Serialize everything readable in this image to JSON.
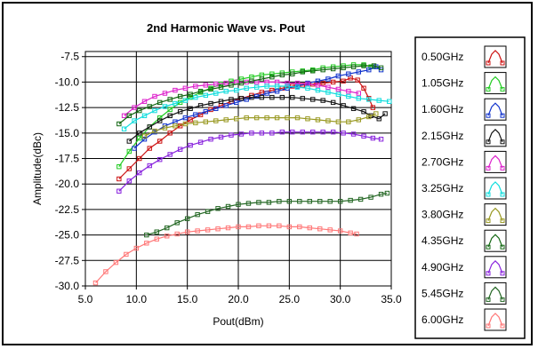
{
  "chart_data": {
    "type": "line",
    "title": "2nd Harmonic Wave vs. Pout",
    "xlabel": "Pout(dBm)",
    "ylabel": "Amplitude(dBc)",
    "xlim": [
      5.0,
      35.0
    ],
    "ylim": [
      -30.0,
      -7.0
    ],
    "xticks": [
      5.0,
      10.0,
      15.0,
      20.0,
      25.0,
      30.0,
      35.0
    ],
    "xtick_labels": [
      "5.0",
      "10.0",
      "15.0",
      "20.0",
      "25.0",
      "30.0",
      "35.0"
    ],
    "yticks": [
      -7.5,
      -10.0,
      -12.5,
      -15.0,
      -17.5,
      -20.0,
      -22.5,
      -25.0,
      -27.5,
      -30.0
    ],
    "ytick_labels": [
      "-7.5",
      "-10.0",
      "-12.5",
      "-15.0",
      "-17.5",
      "-20.0",
      "-22.5",
      "-25.0",
      "-27.5",
      "-30.0"
    ],
    "grid": true,
    "legend_position": "right",
    "series": [
      {
        "name": "0.50GHz",
        "color": "#cc1111",
        "marker": "square",
        "points": [
          [
            8.3,
            -19.5
          ],
          [
            9.3,
            -18.5
          ],
          [
            10.3,
            -17.5
          ],
          [
            11.3,
            -16.5
          ],
          [
            12.3,
            -15.8
          ],
          [
            13.3,
            -15.0
          ],
          [
            14.3,
            -14.3
          ],
          [
            15.3,
            -13.7
          ],
          [
            16.3,
            -13.2
          ],
          [
            17.3,
            -12.7
          ],
          [
            18.3,
            -12.3
          ],
          [
            19.3,
            -11.9
          ],
          [
            20.3,
            -11.6
          ],
          [
            21.3,
            -11.3
          ],
          [
            22.3,
            -11.0
          ],
          [
            23.3,
            -10.8
          ],
          [
            24.3,
            -10.6
          ],
          [
            25.3,
            -10.4
          ],
          [
            26.3,
            -10.3
          ],
          [
            27.3,
            -10.2
          ],
          [
            28.3,
            -10.1
          ],
          [
            29.3,
            -10.0
          ],
          [
            30.3,
            -9.9
          ],
          [
            31.0,
            -9.6
          ],
          [
            31.7,
            -9.8
          ],
          [
            32.3,
            -10.6
          ],
          [
            32.8,
            -11.6
          ],
          [
            33.2,
            -12.5
          ]
        ]
      },
      {
        "name": "1.05GHz",
        "color": "#22cc22",
        "marker": "square",
        "points": [
          [
            8.3,
            -18.3
          ],
          [
            9.3,
            -16.8
          ],
          [
            10.3,
            -15.5
          ],
          [
            11.3,
            -14.4
          ],
          [
            12.3,
            -13.5
          ],
          [
            13.3,
            -12.7
          ],
          [
            14.3,
            -12.0
          ],
          [
            15.3,
            -11.5
          ],
          [
            16.3,
            -11.0
          ],
          [
            17.3,
            -10.6
          ],
          [
            18.3,
            -10.2
          ],
          [
            19.3,
            -9.9
          ],
          [
            20.3,
            -9.7
          ],
          [
            21.3,
            -9.5
          ],
          [
            22.3,
            -9.3
          ],
          [
            23.3,
            -9.2
          ],
          [
            24.3,
            -9.1
          ],
          [
            25.3,
            -9.0
          ],
          [
            26.3,
            -8.9
          ],
          [
            27.3,
            -8.8
          ],
          [
            28.3,
            -8.6
          ],
          [
            29.3,
            -8.5
          ],
          [
            30.3,
            -8.4
          ],
          [
            31.3,
            -8.3
          ],
          [
            32.3,
            -8.3
          ],
          [
            33.0,
            -8.5
          ]
        ]
      },
      {
        "name": "1.60GHz",
        "color": "#1133cc",
        "marker": "square",
        "points": [
          [
            9.8,
            -16.5
          ],
          [
            10.8,
            -15.6
          ],
          [
            11.8,
            -14.9
          ],
          [
            12.8,
            -14.3
          ],
          [
            13.8,
            -13.9
          ],
          [
            14.8,
            -13.5
          ],
          [
            15.8,
            -13.2
          ],
          [
            16.8,
            -12.9
          ],
          [
            17.8,
            -12.6
          ],
          [
            18.8,
            -12.3
          ],
          [
            19.8,
            -12.0
          ],
          [
            20.8,
            -11.7
          ],
          [
            21.8,
            -11.4
          ],
          [
            22.8,
            -11.1
          ],
          [
            23.8,
            -10.9
          ],
          [
            24.8,
            -10.6
          ],
          [
            25.8,
            -10.4
          ],
          [
            26.8,
            -10.1
          ],
          [
            27.8,
            -9.9
          ],
          [
            28.8,
            -9.7
          ],
          [
            29.8,
            -9.4
          ],
          [
            30.8,
            -9.2
          ],
          [
            31.8,
            -9.0
          ],
          [
            32.8,
            -8.8
          ],
          [
            33.5,
            -8.5
          ],
          [
            34.0,
            -8.8
          ]
        ]
      },
      {
        "name": "2.15GHz",
        "color": "#111111",
        "marker": "square",
        "points": [
          [
            9.3,
            -15.8
          ],
          [
            10.3,
            -15.0
          ],
          [
            11.3,
            -14.4
          ],
          [
            12.3,
            -13.8
          ],
          [
            13.3,
            -13.3
          ],
          [
            14.3,
            -12.9
          ],
          [
            15.3,
            -12.6
          ],
          [
            16.3,
            -12.3
          ],
          [
            17.3,
            -12.1
          ],
          [
            18.3,
            -11.9
          ],
          [
            19.3,
            -11.7
          ],
          [
            20.3,
            -11.6
          ],
          [
            21.3,
            -11.5
          ],
          [
            22.3,
            -11.5
          ],
          [
            23.3,
            -11.5
          ],
          [
            24.3,
            -11.5
          ],
          [
            25.3,
            -11.5
          ],
          [
            26.3,
            -11.6
          ],
          [
            27.3,
            -11.7
          ],
          [
            28.3,
            -11.8
          ],
          [
            29.3,
            -12.0
          ],
          [
            30.3,
            -12.3
          ],
          [
            31.3,
            -12.6
          ],
          [
            32.3,
            -12.9
          ],
          [
            33.0,
            -13.3
          ],
          [
            33.8,
            -13.6
          ],
          [
            34.4,
            -13.1
          ]
        ]
      },
      {
        "name": "2.70GHz",
        "color": "#dd22cc",
        "marker": "square",
        "points": [
          [
            8.8,
            -13.3
          ],
          [
            9.8,
            -12.5
          ],
          [
            10.8,
            -11.9
          ],
          [
            11.8,
            -11.4
          ],
          [
            12.8,
            -11.1
          ],
          [
            13.8,
            -10.8
          ],
          [
            14.8,
            -10.6
          ],
          [
            15.8,
            -10.4
          ],
          [
            16.8,
            -10.3
          ],
          [
            17.8,
            -10.2
          ],
          [
            18.8,
            -10.1
          ],
          [
            19.8,
            -10.0
          ],
          [
            20.8,
            -10.0
          ],
          [
            21.8,
            -10.0
          ],
          [
            22.8,
            -10.0
          ],
          [
            23.8,
            -10.0
          ],
          [
            24.8,
            -10.1
          ],
          [
            25.8,
            -10.1
          ],
          [
            26.8,
            -10.2
          ],
          [
            27.8,
            -10.3
          ],
          [
            28.8,
            -10.5
          ],
          [
            29.8,
            -10.7
          ],
          [
            30.8,
            -10.9
          ],
          [
            31.8,
            -11.1
          ]
        ]
      },
      {
        "name": "3.25GHz",
        "color": "#11dddd",
        "marker": "square",
        "points": [
          [
            8.8,
            -14.6
          ],
          [
            9.8,
            -13.8
          ],
          [
            10.8,
            -13.3
          ],
          [
            11.8,
            -12.8
          ],
          [
            12.8,
            -12.4
          ],
          [
            13.8,
            -12.1
          ],
          [
            14.8,
            -11.8
          ],
          [
            15.8,
            -11.5
          ],
          [
            16.8,
            -11.3
          ],
          [
            17.8,
            -11.1
          ],
          [
            18.8,
            -10.9
          ],
          [
            19.8,
            -10.8
          ],
          [
            20.8,
            -10.6
          ],
          [
            21.8,
            -10.5
          ],
          [
            22.8,
            -10.4
          ],
          [
            23.8,
            -10.4
          ],
          [
            24.8,
            -10.4
          ],
          [
            25.8,
            -10.5
          ],
          [
            26.8,
            -10.6
          ],
          [
            27.8,
            -10.8
          ],
          [
            28.8,
            -11.0
          ],
          [
            29.8,
            -11.2
          ],
          [
            30.8,
            -11.4
          ],
          [
            31.8,
            -11.6
          ],
          [
            32.8,
            -11.7
          ],
          [
            33.8,
            -11.8
          ],
          [
            34.8,
            -11.9
          ]
        ]
      },
      {
        "name": "3.80GHz",
        "color": "#999922",
        "marker": "square",
        "points": [
          [
            10.8,
            -15.3
          ],
          [
            11.8,
            -14.8
          ],
          [
            12.8,
            -14.5
          ],
          [
            13.8,
            -14.3
          ],
          [
            14.8,
            -14.1
          ],
          [
            15.8,
            -14.0
          ],
          [
            16.8,
            -13.9
          ],
          [
            17.8,
            -13.8
          ],
          [
            18.8,
            -13.7
          ],
          [
            19.8,
            -13.6
          ],
          [
            20.8,
            -13.5
          ],
          [
            21.8,
            -13.5
          ],
          [
            22.8,
            -13.5
          ],
          [
            23.8,
            -13.5
          ],
          [
            24.8,
            -13.5
          ],
          [
            25.8,
            -13.5
          ],
          [
            26.8,
            -13.6
          ],
          [
            27.8,
            -13.7
          ],
          [
            28.8,
            -13.8
          ],
          [
            29.8,
            -13.9
          ],
          [
            30.8,
            -13.9
          ],
          [
            31.8,
            -13.7
          ],
          [
            32.8,
            -13.4
          ],
          [
            33.5,
            -13.1
          ]
        ]
      },
      {
        "name": "4.35GHz",
        "color": "#116611",
        "marker": "square",
        "points": [
          [
            8.3,
            -14.1
          ],
          [
            9.3,
            -13.3
          ],
          [
            10.3,
            -12.8
          ],
          [
            11.3,
            -12.4
          ],
          [
            12.3,
            -12.0
          ],
          [
            13.3,
            -11.7
          ],
          [
            14.3,
            -11.4
          ],
          [
            15.3,
            -11.2
          ],
          [
            16.3,
            -10.9
          ],
          [
            17.3,
            -10.7
          ],
          [
            18.3,
            -10.5
          ],
          [
            19.3,
            -10.3
          ],
          [
            20.3,
            -10.1
          ],
          [
            21.3,
            -9.9
          ],
          [
            22.3,
            -9.7
          ],
          [
            23.3,
            -9.5
          ],
          [
            24.3,
            -9.3
          ],
          [
            25.3,
            -9.2
          ],
          [
            26.3,
            -9.0
          ],
          [
            27.3,
            -8.9
          ],
          [
            28.3,
            -8.8
          ],
          [
            29.3,
            -8.7
          ],
          [
            30.3,
            -8.6
          ],
          [
            31.3,
            -8.5
          ],
          [
            32.3,
            -8.4
          ],
          [
            33.3,
            -8.4
          ],
          [
            34.0,
            -8.6
          ]
        ]
      },
      {
        "name": "4.90GHz",
        "color": "#8822dd",
        "marker": "square",
        "points": [
          [
            8.3,
            -20.7
          ],
          [
            9.3,
            -19.7
          ],
          [
            10.3,
            -18.9
          ],
          [
            11.3,
            -18.2
          ],
          [
            12.3,
            -17.6
          ],
          [
            13.3,
            -17.1
          ],
          [
            14.3,
            -16.6
          ],
          [
            15.3,
            -16.2
          ],
          [
            16.3,
            -15.9
          ],
          [
            17.3,
            -15.6
          ],
          [
            18.3,
            -15.4
          ],
          [
            19.3,
            -15.2
          ],
          [
            20.3,
            -15.1
          ],
          [
            21.3,
            -15.0
          ],
          [
            22.3,
            -15.0
          ],
          [
            23.3,
            -15.0
          ],
          [
            24.3,
            -14.9
          ],
          [
            25.3,
            -14.9
          ],
          [
            26.3,
            -14.9
          ],
          [
            27.3,
            -14.9
          ],
          [
            28.3,
            -14.9
          ],
          [
            29.3,
            -14.9
          ],
          [
            30.3,
            -15.0
          ],
          [
            31.3,
            -15.1
          ],
          [
            32.3,
            -15.3
          ],
          [
            33.2,
            -15.5
          ],
          [
            34.0,
            -15.6
          ]
        ]
      },
      {
        "name": "5.45GHz",
        "color": "#226622",
        "marker": "square",
        "points": [
          [
            11.0,
            -25.0
          ],
          [
            12.0,
            -24.7
          ],
          [
            13.0,
            -24.3
          ],
          [
            14.0,
            -23.8
          ],
          [
            15.0,
            -23.4
          ],
          [
            16.0,
            -23.0
          ],
          [
            17.0,
            -22.7
          ],
          [
            18.0,
            -22.4
          ],
          [
            19.0,
            -22.2
          ],
          [
            20.0,
            -22.0
          ],
          [
            21.0,
            -21.9
          ],
          [
            22.0,
            -21.8
          ],
          [
            23.0,
            -21.8
          ],
          [
            24.0,
            -21.7
          ],
          [
            25.0,
            -21.7
          ],
          [
            26.0,
            -21.7
          ],
          [
            27.0,
            -21.7
          ],
          [
            28.0,
            -21.7
          ],
          [
            29.0,
            -21.7
          ],
          [
            30.0,
            -21.7
          ],
          [
            31.0,
            -21.6
          ],
          [
            32.0,
            -21.5
          ],
          [
            33.0,
            -21.3
          ],
          [
            34.0,
            -21.0
          ],
          [
            34.6,
            -20.9
          ]
        ]
      },
      {
        "name": "6.00GHz",
        "color": "#ff7777",
        "marker": "square",
        "points": [
          [
            6.0,
            -29.7
          ],
          [
            7.0,
            -28.6
          ],
          [
            8.0,
            -27.7
          ],
          [
            9.0,
            -26.9
          ],
          [
            10.0,
            -26.3
          ],
          [
            11.0,
            -25.8
          ],
          [
            12.0,
            -25.4
          ],
          [
            13.0,
            -25.1
          ],
          [
            14.0,
            -24.9
          ],
          [
            15.0,
            -24.7
          ],
          [
            16.0,
            -24.6
          ],
          [
            17.0,
            -24.5
          ],
          [
            18.0,
            -24.4
          ],
          [
            19.0,
            -24.3
          ],
          [
            20.0,
            -24.2
          ],
          [
            21.0,
            -24.2
          ],
          [
            22.0,
            -24.1
          ],
          [
            23.0,
            -24.1
          ],
          [
            24.0,
            -24.1
          ],
          [
            25.0,
            -24.2
          ],
          [
            26.0,
            -24.2
          ],
          [
            27.0,
            -24.3
          ],
          [
            28.0,
            -24.4
          ],
          [
            29.0,
            -24.5
          ],
          [
            30.0,
            -24.6
          ],
          [
            31.0,
            -24.8
          ],
          [
            31.6,
            -24.9
          ]
        ]
      }
    ]
  }
}
